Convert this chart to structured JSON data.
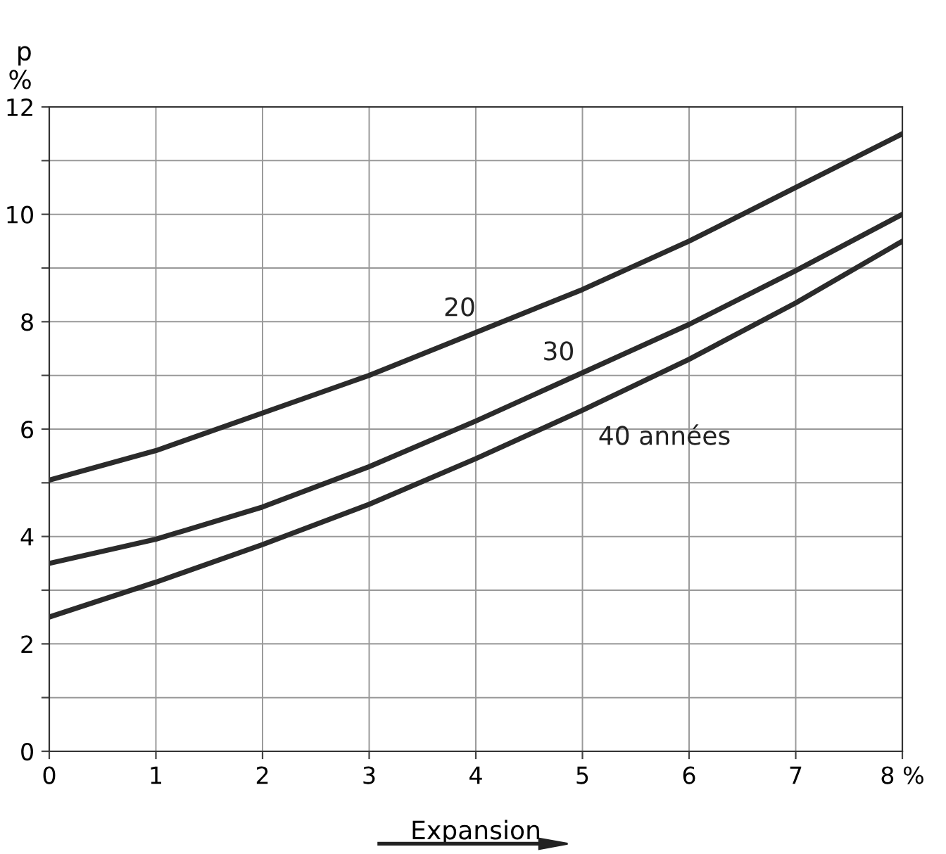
{
  "chart_data": {
    "type": "line",
    "xlabel": "Expansion",
    "ylabel": "p\n%",
    "x": [
      0,
      1,
      2,
      3,
      4,
      5,
      6,
      7,
      8
    ],
    "series": [
      {
        "name": "20",
        "color": "#2b2b2b",
        "values": [
          5.05,
          5.6,
          6.3,
          7.0,
          7.8,
          8.6,
          9.5,
          10.5,
          11.5
        ]
      },
      {
        "name": "30",
        "color": "#2b2b2b",
        "values": [
          3.5,
          3.95,
          4.55,
          5.3,
          6.15,
          7.05,
          7.95,
          8.95,
          10.0
        ]
      },
      {
        "name": "40 années",
        "color": "#2b2b2b",
        "values": [
          2.5,
          3.15,
          3.85,
          4.6,
          5.45,
          6.35,
          7.3,
          8.35,
          9.5
        ]
      }
    ],
    "xlim": [
      0,
      8
    ],
    "xticks": [
      0,
      1,
      2,
      3,
      4,
      5,
      6,
      7,
      {
        "value": 8,
        "label": "8 %"
      }
    ],
    "ylim": [
      0,
      12
    ],
    "yticks": [
      0,
      {
        "value": 1,
        "label": null
      },
      2,
      {
        "value": 3,
        "label": null
      },
      4,
      {
        "value": 5,
        "label": null
      },
      6,
      {
        "value": 7,
        "label": null
      },
      8,
      {
        "value": 9,
        "label": null
      },
      10,
      {
        "value": 11,
        "label": null
      },
      12
    ],
    "grid": true,
    "line_style": "solid",
    "marker": "none",
    "legend": false
  }
}
